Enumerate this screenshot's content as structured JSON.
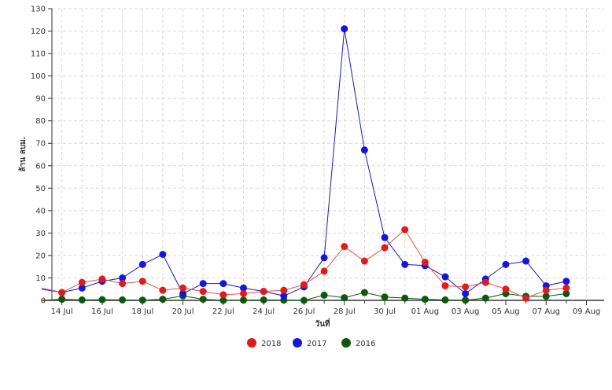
{
  "chart_data": {
    "type": "line",
    "xlabel": "วันที่",
    "ylabel": "ล้าน ลบม.",
    "ylim": [
      0,
      130
    ],
    "yticks": [
      "0",
      "10",
      "20",
      "30",
      "40",
      "50",
      "60",
      "70",
      "80",
      "90",
      "100",
      "110",
      "120",
      "130"
    ],
    "xtick_labels": [
      "14 Jul",
      "16 Jul",
      "18 Jul",
      "20 Jul",
      "22 Jul",
      "24 Jul",
      "26 Jul",
      "28 Jul",
      "30 Jul",
      "01 Aug",
      "03 Aug",
      "05 Aug",
      "07 Aug",
      "09 Aug"
    ],
    "grid": true,
    "legend_position": "bottom",
    "series": [
      {
        "name": "2018",
        "color": "#e31a1c",
        "line_color": "#d9534f",
        "start_day": 0,
        "values": [
          5.5,
          3.5,
          8,
          9.5,
          7.5,
          8.5,
          4.5,
          5.5,
          4,
          2.5,
          3,
          4,
          4.5,
          7,
          13,
          24,
          17.5,
          23.5,
          31.5,
          17,
          6.5,
          6,
          8,
          5,
          1,
          4.5,
          5.5
        ]
      },
      {
        "name": "2017",
        "color": "#1515e0",
        "line_color": "#1a1ab8",
        "start_day": 0,
        "values": [
          5,
          3.5,
          5.5,
          8.5,
          10,
          16,
          20.5,
          3,
          7.5,
          7.5,
          5.5,
          4,
          2,
          6,
          19,
          121,
          67,
          28,
          16,
          15.5,
          10.5,
          3,
          9.5,
          16,
          17.5,
          6.5,
          8.5
        ]
      },
      {
        "name": "2016",
        "color": "#0b5a0b",
        "line_color": "#0b5a0b",
        "start_day": 0,
        "values": [
          0,
          0.5,
          0.2,
          0.3,
          0.2,
          0.1,
          0.5,
          2,
          0.5,
          0,
          0.1,
          0.2,
          0.1,
          0,
          2.3,
          1.2,
          3.5,
          1.5,
          1,
          0.5,
          0.2,
          0.1,
          1,
          3,
          1.8,
          1.8,
          3
        ]
      }
    ]
  }
}
